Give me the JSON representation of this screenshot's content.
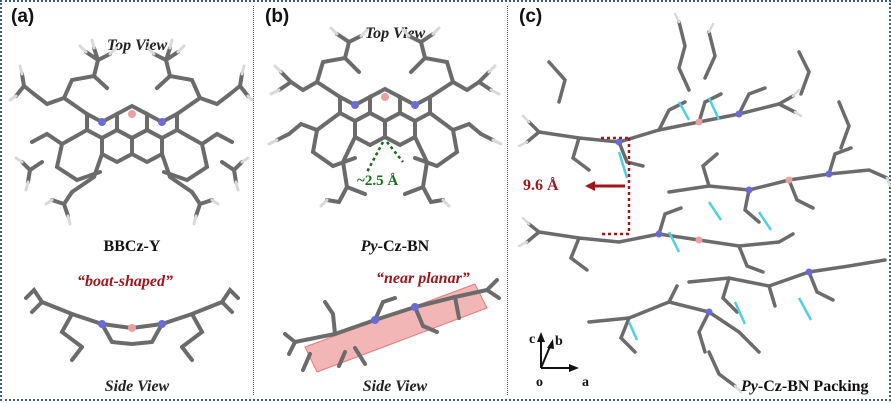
{
  "panels": [
    {
      "label": "(a)",
      "top_caption": "Top View",
      "name": "BBCz-Y",
      "side_annotation": "“boat-shaped”",
      "bottom_caption": "Side View"
    },
    {
      "label": "(b)",
      "top_caption": "Top View",
      "distance": "2.5 Å",
      "name_prefix": "Py",
      "name_suffix": "-Cz-BN",
      "side_annotation": "“near planar”",
      "bottom_caption": "Side View"
    },
    {
      "label": "(c)",
      "stack_distance": "9.6 Å",
      "packing_prefix": "Py",
      "packing_suffix": "-Cz-BN Packing",
      "axes": {
        "c": "c",
        "b": "b",
        "a": "a",
        "o": "o"
      }
    }
  ],
  "colors": {
    "carbon": "#6b6b6b",
    "hydrogen": "#d9d9d9",
    "nitrogen": "#6a6ad8",
    "boron": "#e8a0a0",
    "contact": "#4fd0e0",
    "annotation": "#a0161a",
    "plane": "#e87a7a"
  }
}
